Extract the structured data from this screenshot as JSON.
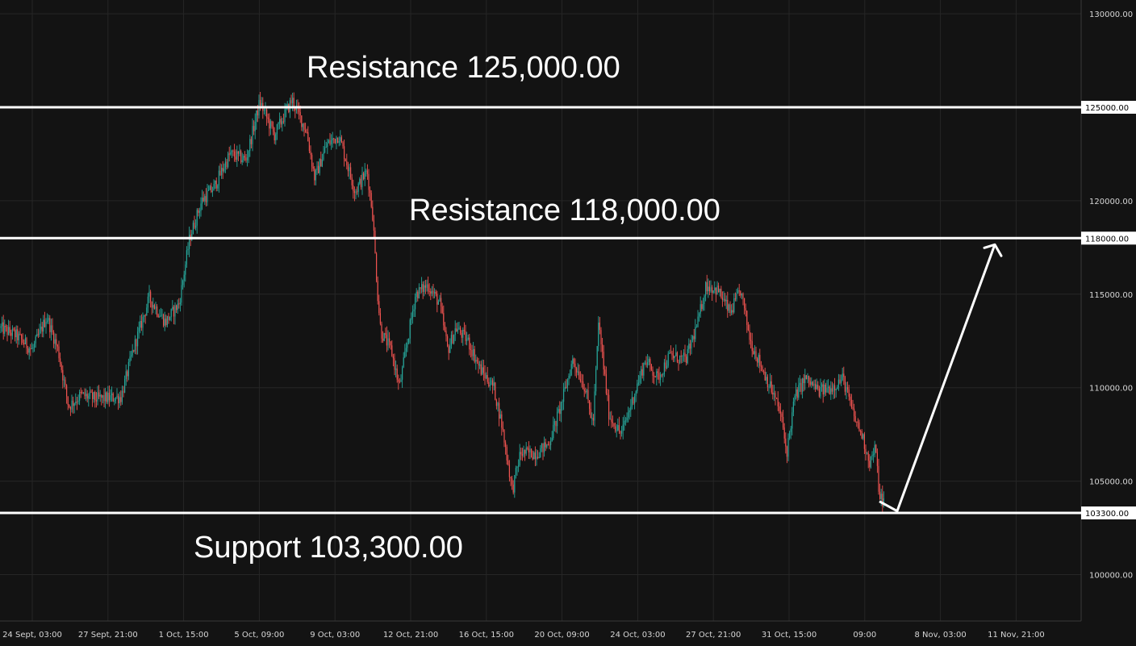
{
  "chart_data": {
    "type": "candlestick",
    "y_axis_ticks": [
      "130000.00",
      "120000.00",
      "115000.00",
      "110000.00",
      "105000.00",
      "100000.00"
    ],
    "x_axis_ticks": [
      "24 Sept, 03:00",
      "27 Sept, 21:00",
      "1 Oct, 15:00",
      "5 Oct, 09:00",
      "9 Oct, 03:00",
      "12 Oct, 21:00",
      "16 Oct, 15:00",
      "20 Oct, 09:00",
      "24 Oct, 03:00",
      "27 Oct, 21:00",
      "31 Oct, 15:00",
      "09:00",
      "8 Nov, 03:00",
      "11 Nov, 21:00"
    ],
    "ylim": [
      97500,
      131000
    ],
    "grid": true,
    "levels": [
      {
        "name": "resistance-125000",
        "value": 125000,
        "axis_label": "125000.00",
        "annotation": "Resistance 125,000.00"
      },
      {
        "name": "resistance-118000",
        "value": 118000,
        "axis_label": "118000.00",
        "annotation": "Resistance 118,000.00"
      },
      {
        "name": "support-103300",
        "value": 103300,
        "axis_label": "103300.00",
        "annotation": "Support 103,300.00"
      }
    ],
    "price_path": [
      [
        0,
        113200
      ],
      [
        20,
        112800
      ],
      [
        40,
        112000
      ],
      [
        58,
        113800
      ],
      [
        72,
        112000
      ],
      [
        85,
        109000
      ],
      [
        100,
        109600
      ],
      [
        120,
        109400
      ],
      [
        150,
        109500
      ],
      [
        165,
        112000
      ],
      [
        185,
        114800
      ],
      [
        205,
        113500
      ],
      [
        222,
        114500
      ],
      [
        235,
        118000
      ],
      [
        250,
        120000
      ],
      [
        265,
        120700
      ],
      [
        285,
        122500
      ],
      [
        305,
        122200
      ],
      [
        322,
        125300
      ],
      [
        340,
        123500
      ],
      [
        362,
        125400
      ],
      [
        380,
        123700
      ],
      [
        390,
        121200
      ],
      [
        405,
        123000
      ],
      [
        420,
        123500
      ],
      [
        440,
        120500
      ],
      [
        455,
        121600
      ],
      [
        462,
        119200
      ],
      [
        468,
        115000
      ],
      [
        472,
        113000
      ],
      [
        485,
        112000
      ],
      [
        495,
        110000
      ],
      [
        505,
        112500
      ],
      [
        515,
        115000
      ],
      [
        530,
        115500
      ],
      [
        545,
        114500
      ],
      [
        555,
        112000
      ],
      [
        565,
        113200
      ],
      [
        580,
        112500
      ],
      [
        595,
        111000
      ],
      [
        612,
        110000
      ],
      [
        622,
        108000
      ],
      [
        635,
        104500
      ],
      [
        645,
        106500
      ],
      [
        665,
        106500
      ],
      [
        680,
        107000
      ],
      [
        695,
        109000
      ],
      [
        710,
        111500
      ],
      [
        725,
        110000
      ],
      [
        735,
        108000
      ],
      [
        742,
        113500
      ],
      [
        755,
        108500
      ],
      [
        770,
        107500
      ],
      [
        785,
        109500
      ],
      [
        800,
        111500
      ],
      [
        815,
        110500
      ],
      [
        830,
        111700
      ],
      [
        850,
        111500
      ],
      [
        865,
        113500
      ],
      [
        875,
        115500
      ],
      [
        890,
        115200
      ],
      [
        905,
        114000
      ],
      [
        918,
        115200
      ],
      [
        930,
        112500
      ],
      [
        945,
        111000
      ],
      [
        960,
        109500
      ],
      [
        968,
        108500
      ],
      [
        975,
        106500
      ],
      [
        985,
        109500
      ],
      [
        998,
        110500
      ],
      [
        1015,
        109800
      ],
      [
        1030,
        110000
      ],
      [
        1045,
        110500
      ],
      [
        1058,
        108500
      ],
      [
        1068,
        107500
      ],
      [
        1078,
        106000
      ],
      [
        1085,
        106800
      ],
      [
        1090,
        104200
      ],
      [
        1097,
        103800
      ]
    ],
    "projection": {
      "from": 103400,
      "to": 118000
    }
  }
}
